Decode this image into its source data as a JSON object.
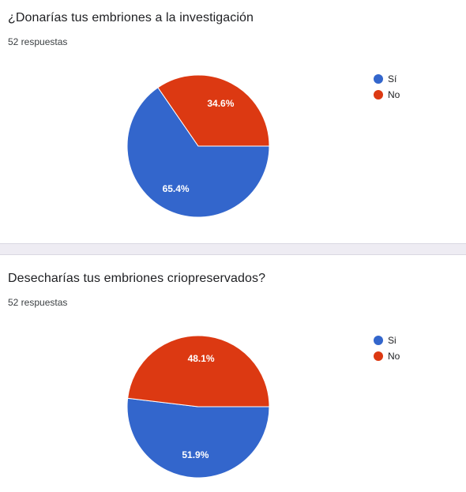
{
  "questions": [
    {
      "title": "¿Donarías tus embriones a la investigación",
      "responses": "52 respuestas"
    },
    {
      "title": "Desecharías tus embriones criopreservados?",
      "responses": "52 respuestas"
    }
  ],
  "chart_data": [
    {
      "type": "pie",
      "categories": [
        "Sí",
        "No"
      ],
      "values": [
        65.4,
        34.6
      ],
      "value_labels": [
        "65.4%",
        "34.6%"
      ],
      "colors": [
        "#3366cc",
        "#dc3912"
      ],
      "legend_position": "right"
    },
    {
      "type": "pie",
      "categories": [
        "Si",
        "No"
      ],
      "values": [
        51.9,
        48.1
      ],
      "value_labels": [
        "51.9%",
        "48.1%"
      ],
      "colors": [
        "#3366cc",
        "#dc3912"
      ],
      "legend_position": "right"
    }
  ]
}
